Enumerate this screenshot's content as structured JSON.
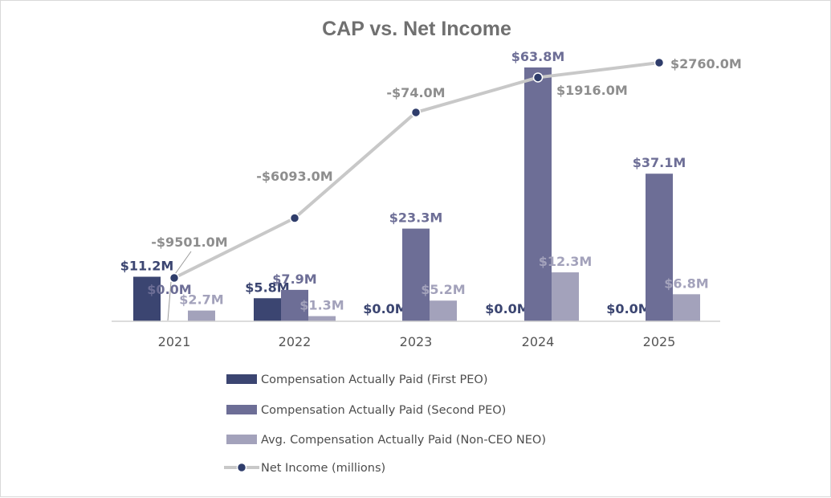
{
  "chart_data": {
    "type": "bar",
    "title": "CAP vs. Net Income",
    "categories": [
      "2021",
      "2022",
      "2023",
      "2024",
      "2025"
    ],
    "series": [
      {
        "name": "Compensation Actually Paid (First PEO)",
        "color": "#3b4571",
        "values": [
          11.2,
          5.8,
          0.0,
          0.0,
          0.0
        ],
        "labels": [
          "$11.2M",
          "$5.8M",
          "$0.0M",
          "$0.0M",
          "$0.0M"
        ]
      },
      {
        "name": "Compensation Actually Paid (Second PEO)",
        "color": "#6d6e96",
        "values": [
          0.0,
          7.9,
          23.3,
          63.8,
          37.1
        ],
        "labels": [
          "$0.0M",
          "$7.9M",
          "$23.3M",
          "$63.8M",
          "$37.1M"
        ]
      },
      {
        "name": "Avg. Compensation Actually Paid (Non-CEO NEO)",
        "color": "#a3a2bb",
        "values": [
          2.7,
          1.3,
          5.2,
          12.3,
          6.8
        ],
        "labels": [
          "$2.7M",
          "$1.3M",
          "$5.2M",
          "$12.3M",
          "$6.8M"
        ]
      }
    ],
    "line_series": {
      "name": "Net Income (millions)",
      "line_color": "#c8c8c8",
      "marker_color": "#2f3d6b",
      "values": [
        -9501.0,
        -6093.0,
        -74.0,
        1916.0,
        2760.0
      ],
      "labels": [
        "-$9501.0M",
        "-$6093.0M",
        "-$74.0M",
        "$1916.0M",
        "$2760.0M"
      ]
    },
    "bar_axis_range": [
      0,
      64
    ],
    "line_axis_range": [
      -9501,
      2760
    ],
    "legend_position": "bottom",
    "grid": false
  }
}
